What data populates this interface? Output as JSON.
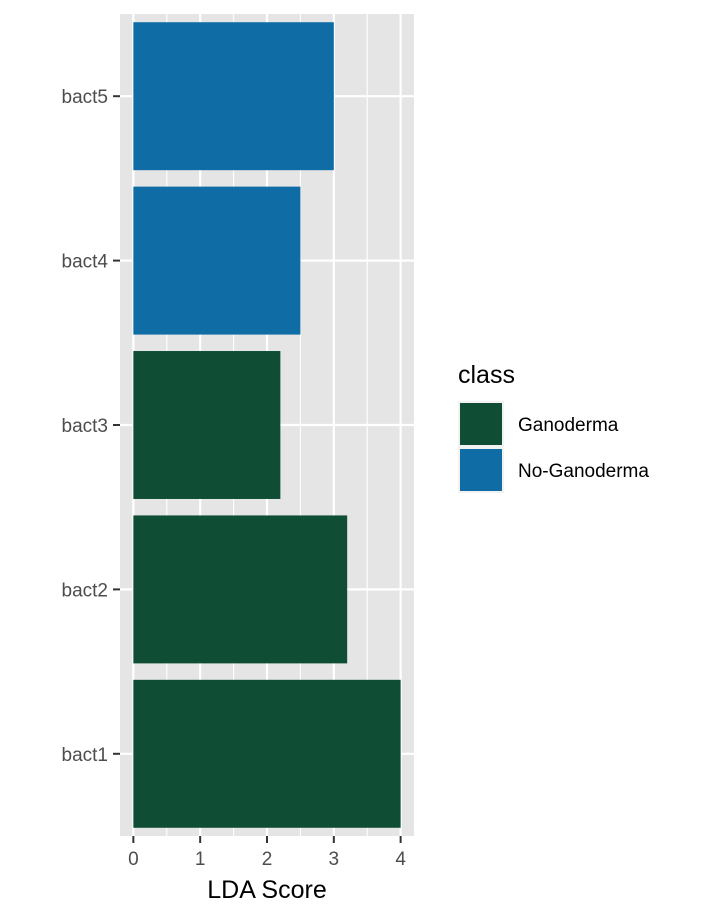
{
  "chart_data": {
    "type": "bar",
    "orientation": "horizontal",
    "categories": [
      "bact1",
      "bact2",
      "bact3",
      "bact4",
      "bact5"
    ],
    "values": [
      4.0,
      3.2,
      2.2,
      2.5,
      3.0
    ],
    "classes": [
      "Ganoderma",
      "Ganoderma",
      "Ganoderma",
      "No-Ganoderma",
      "No-Ganoderma"
    ],
    "xlabel": "LDA Score",
    "ylabel": "",
    "xlim": [
      -0.2,
      4.2
    ],
    "xticks": [
      "0",
      "1",
      "2",
      "3",
      "4"
    ],
    "grid": true,
    "legend": {
      "title": "class",
      "position": "right",
      "entries": [
        {
          "label": "Ganoderma",
          "color": "#0f4d35"
        },
        {
          "label": "No-Ganoderma",
          "color": "#0f6ca5"
        }
      ]
    },
    "colors": {
      "panel": "#e5e5e5",
      "grid": "#ffffff",
      "axis_text": "#4d4d4d"
    }
  }
}
